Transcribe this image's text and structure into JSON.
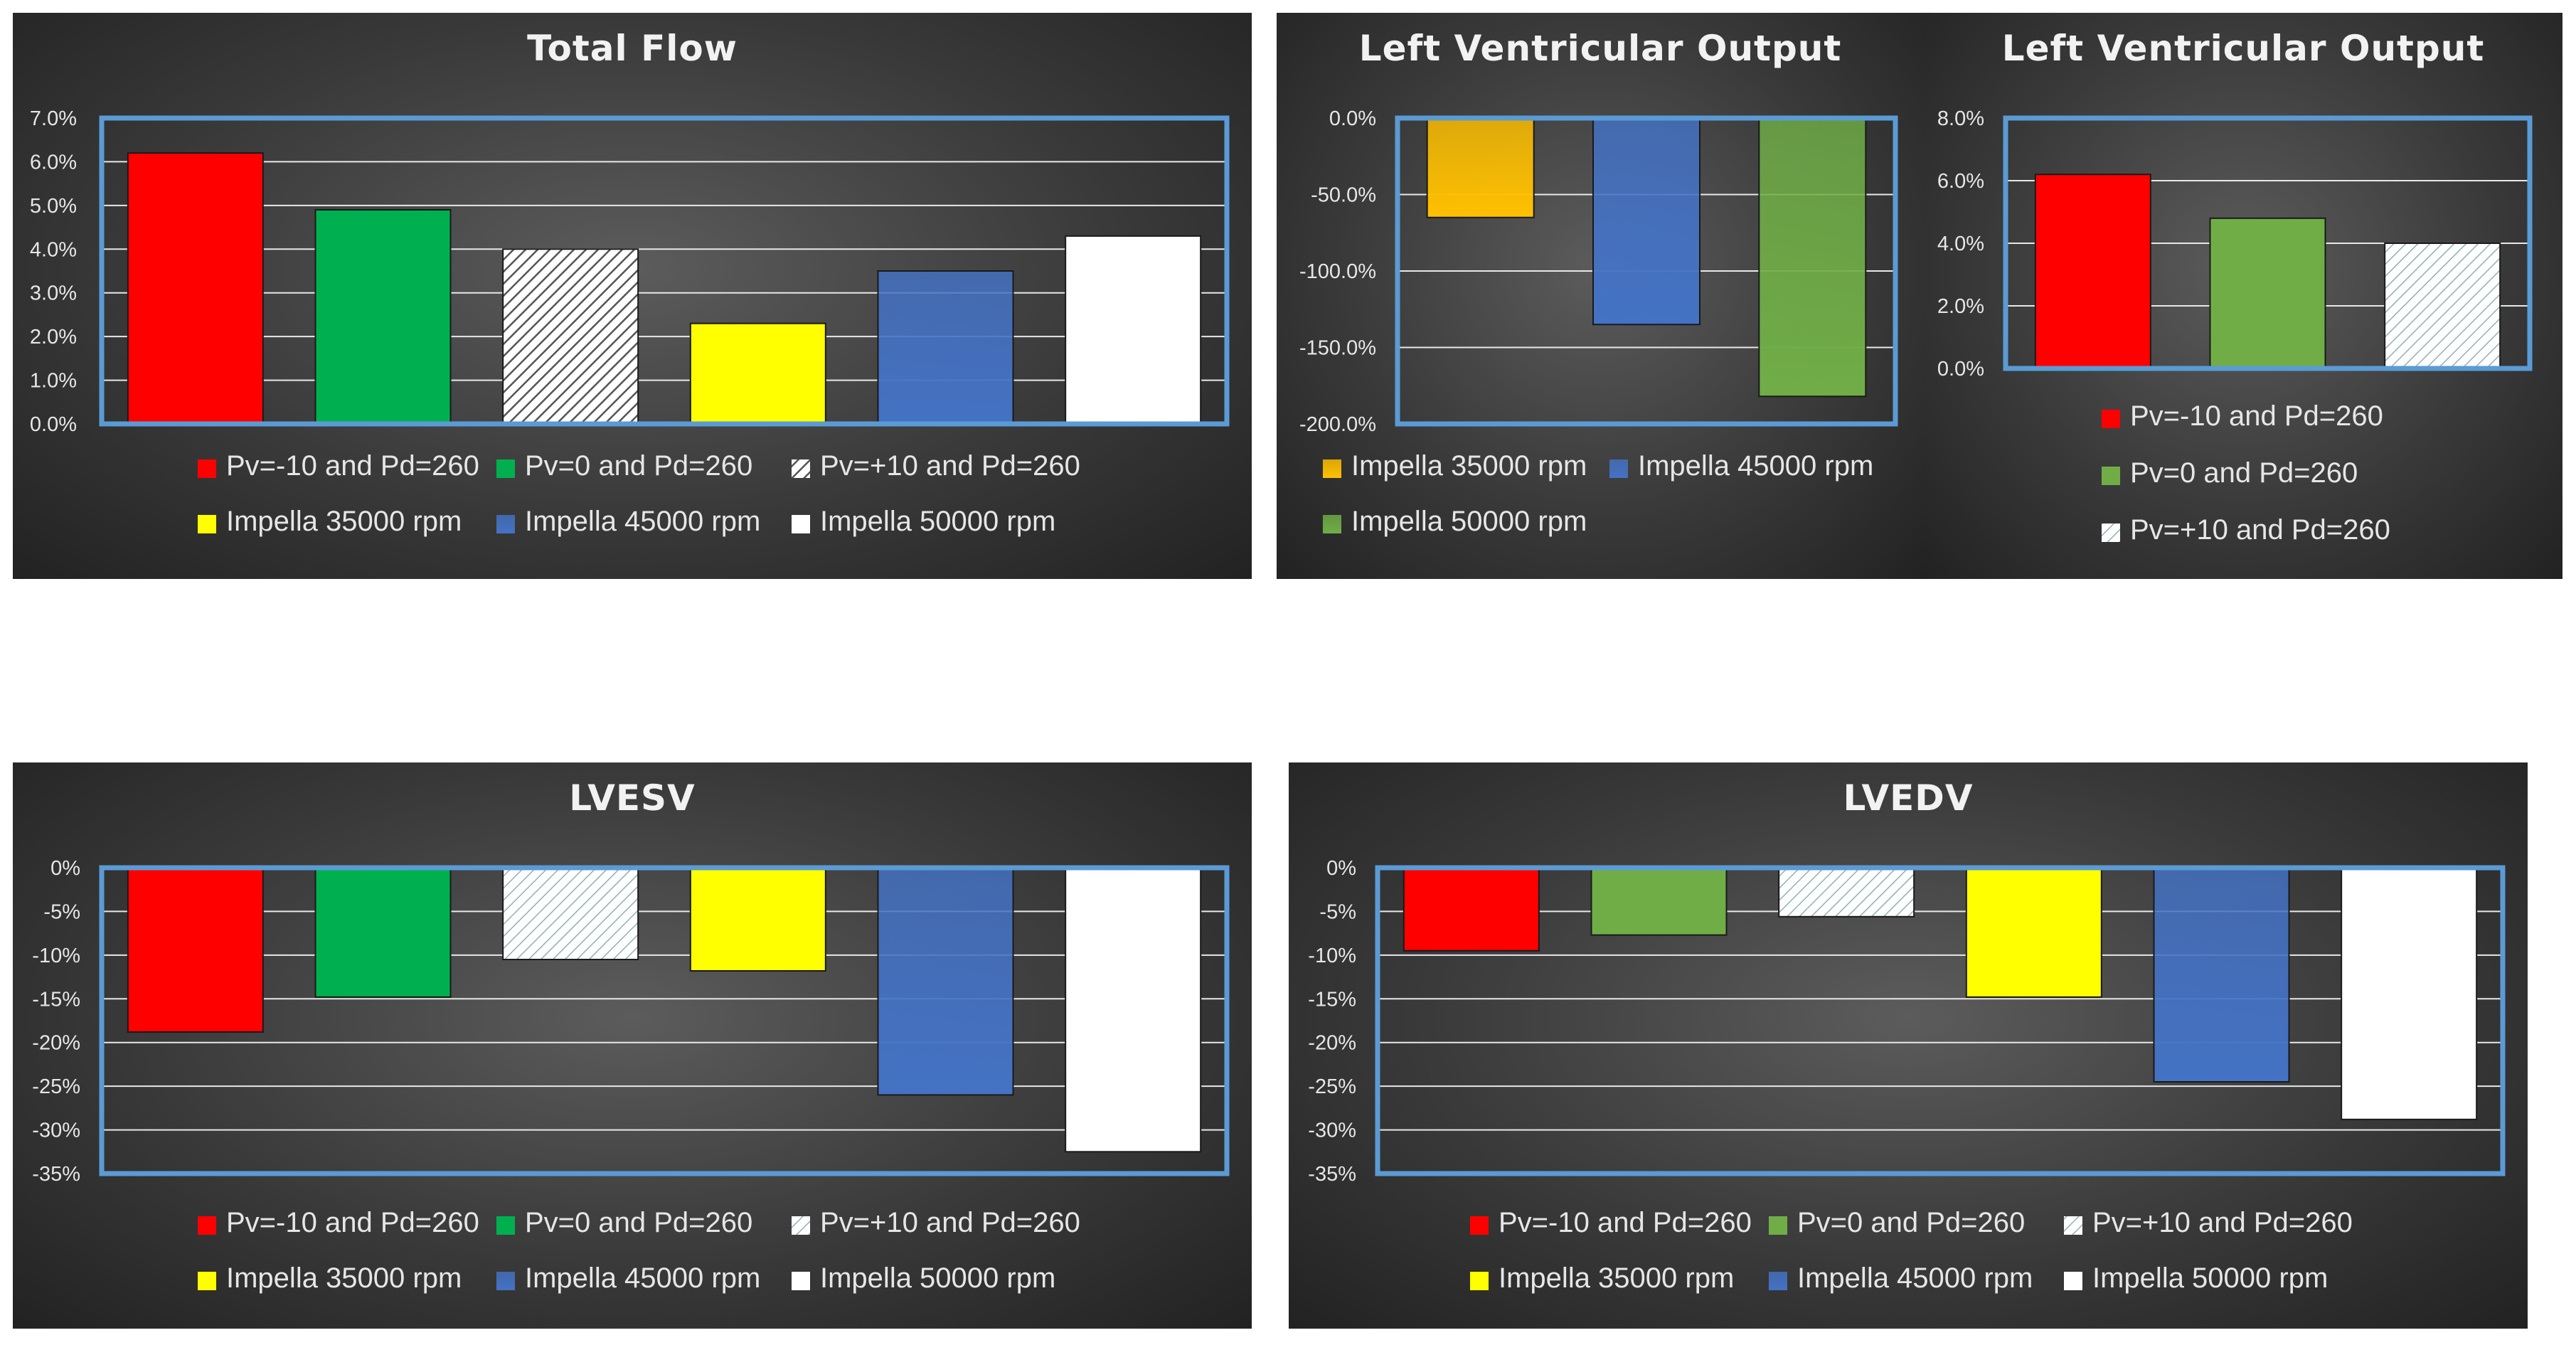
{
  "colors": {
    "red": "#ff0000",
    "green": "#00b050",
    "yellow": "#ffff00",
    "blue": "#4472c4",
    "white": "#ffffff",
    "orange": "#ffc000",
    "olive_green": "#70ad47",
    "frame": "#5b9bd5"
  },
  "chart_data": [
    {
      "id": "total_flow",
      "type": "bar",
      "title": "Total Flow",
      "ylim": [
        0,
        7
      ],
      "ytick_values": [
        7,
        6,
        5,
        4,
        3,
        2,
        1,
        0
      ],
      "yticks": [
        "7.0%",
        "6.0%",
        "5.0%",
        "4.0%",
        "3.0%",
        "2.0%",
        "1.0%",
        "0.0%"
      ],
      "grid": true,
      "legend_position": "bottom",
      "series": [
        {
          "name": "Pv=-10 and Pd=260",
          "value": 6.2,
          "color": "#ff0000",
          "pattern": "solid"
        },
        {
          "name": "Pv=0 and Pd=260",
          "value": 4.9,
          "color": "#00b050",
          "pattern": "solid"
        },
        {
          "name": "Pv=+10 and Pd=260",
          "value": 4.0,
          "color": "#ffffff",
          "pattern": "hatch-dark"
        },
        {
          "name": "Impella 35000 rpm",
          "value": 2.3,
          "color": "#ffff00",
          "pattern": "solid"
        },
        {
          "name": "Impella 45000 rpm",
          "value": 3.5,
          "color": "#4472c4",
          "pattern": "gradient"
        },
        {
          "name": "Impella 50000 rpm",
          "value": 4.3,
          "color": "#ffffff",
          "pattern": "solid"
        }
      ]
    },
    {
      "id": "lv_output_impella",
      "type": "bar",
      "title": "Left Ventricular Output",
      "ylim": [
        -200,
        0
      ],
      "ytick_values": [
        0,
        -50,
        -100,
        -150,
        -200
      ],
      "yticks": [
        "0.0%",
        "-50.0%",
        "-100.0%",
        "-150.0%",
        "-200.0%"
      ],
      "grid": true,
      "legend_position": "bottom",
      "series": [
        {
          "name": "Impella 35000 rpm",
          "value": -65,
          "color": "#ffc000",
          "pattern": "gradient"
        },
        {
          "name": "Impella 45000 rpm",
          "value": -135,
          "color": "#4472c4",
          "pattern": "gradient"
        },
        {
          "name": "Impella 50000 rpm",
          "value": -182,
          "color": "#70ad47",
          "pattern": "gradient"
        }
      ]
    },
    {
      "id": "lv_output_pv",
      "type": "bar",
      "title": "Left Ventricular Output",
      "ylim": [
        0,
        8
      ],
      "ytick_values": [
        8,
        6,
        4,
        2,
        0
      ],
      "yticks": [
        "8.0%",
        "6.0%",
        "4.0%",
        "2.0%",
        "0.0%"
      ],
      "grid": true,
      "legend_position": "bottom",
      "series": [
        {
          "name": "Pv=-10 and Pd=260",
          "value": 6.2,
          "color": "#ff0000",
          "pattern": "solid"
        },
        {
          "name": "Pv=0 and Pd=260",
          "value": 4.8,
          "color": "#70ad47",
          "pattern": "solid"
        },
        {
          "name": "Pv=+10 and Pd=260",
          "value": 4.0,
          "color": "#ffffff",
          "pattern": "hatch-light"
        }
      ]
    },
    {
      "id": "lvesv",
      "type": "bar",
      "title": "LVESV",
      "ylim": [
        -35,
        0
      ],
      "ytick_values": [
        0,
        -5,
        -10,
        -15,
        -20,
        -25,
        -30,
        -35
      ],
      "yticks": [
        "0%",
        "-5%",
        "-10%",
        "-15%",
        "-20%",
        "-25%",
        "-30%",
        "-35%"
      ],
      "grid": true,
      "legend_position": "bottom",
      "series": [
        {
          "name": "Pv=-10 and Pd=260",
          "value": -18.8,
          "color": "#ff0000",
          "pattern": "solid"
        },
        {
          "name": "Pv=0 and Pd=260",
          "value": -14.8,
          "color": "#00b050",
          "pattern": "solid"
        },
        {
          "name": "Pv=+10 and Pd=260",
          "value": -10.5,
          "color": "#ffffff",
          "pattern": "hatch-light"
        },
        {
          "name": "Impella 35000 rpm",
          "value": -11.8,
          "color": "#ffff00",
          "pattern": "solid"
        },
        {
          "name": "Impella 45000 rpm",
          "value": -26.0,
          "color": "#4472c4",
          "pattern": "gradient"
        },
        {
          "name": "Impella 50000 rpm",
          "value": -32.5,
          "color": "#ffffff",
          "pattern": "solid"
        }
      ]
    },
    {
      "id": "lvedv",
      "type": "bar",
      "title": "LVEDV",
      "ylim": [
        -35,
        0
      ],
      "ytick_values": [
        0,
        -5,
        -10,
        -15,
        -20,
        -25,
        -30,
        -35
      ],
      "yticks": [
        "0%",
        "-5%",
        "-10%",
        "-15%",
        "-20%",
        "-25%",
        "-30%",
        "-35%"
      ],
      "grid": true,
      "legend_position": "bottom",
      "series": [
        {
          "name": "Pv=-10 and Pd=260",
          "value": -9.5,
          "color": "#ff0000",
          "pattern": "solid"
        },
        {
          "name": "Pv=0 and Pd=260",
          "value": -7.7,
          "color": "#70ad47",
          "pattern": "solid"
        },
        {
          "name": "Pv=+10 and Pd=260",
          "value": -5.6,
          "color": "#ffffff",
          "pattern": "hatch-light"
        },
        {
          "name": "Impella 35000 rpm",
          "value": -14.8,
          "color": "#ffff00",
          "pattern": "solid"
        },
        {
          "name": "Impella 45000 rpm",
          "value": -24.5,
          "color": "#4472c4",
          "pattern": "gradient"
        },
        {
          "name": "Impella 50000 rpm",
          "value": -28.8,
          "color": "#ffffff",
          "pattern": "solid"
        }
      ]
    }
  ]
}
